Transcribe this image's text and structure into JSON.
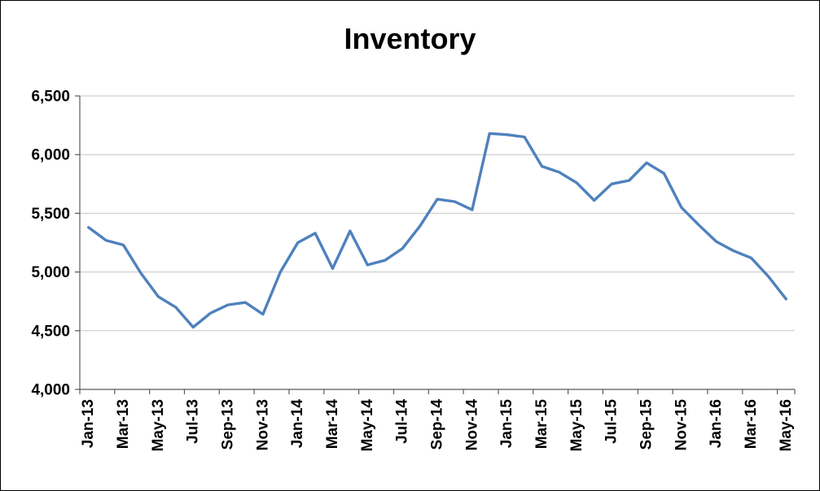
{
  "chart_data": {
    "type": "line",
    "title": "Inventory",
    "categories": [
      "Jan-13",
      "Feb-13",
      "Mar-13",
      "Apr-13",
      "May-13",
      "Jun-13",
      "Jul-13",
      "Aug-13",
      "Sep-13",
      "Oct-13",
      "Nov-13",
      "Dec-13",
      "Jan-14",
      "Feb-14",
      "Mar-14",
      "Apr-14",
      "May-14",
      "Jun-14",
      "Jul-14",
      "Aug-14",
      "Sep-14",
      "Oct-14",
      "Nov-14",
      "Dec-14",
      "Jan-15",
      "Feb-15",
      "Mar-15",
      "Apr-15",
      "May-15",
      "Jun-15",
      "Jul-15",
      "Aug-15",
      "Sep-15",
      "Oct-15",
      "Nov-15",
      "Dec-15",
      "Jan-16",
      "Feb-16",
      "Mar-16",
      "Apr-16",
      "May-16"
    ],
    "values": [
      5380,
      5270,
      5230,
      4990,
      4790,
      4700,
      4530,
      4650,
      4720,
      4740,
      4640,
      5000,
      5250,
      5330,
      5030,
      5350,
      5060,
      5100,
      5200,
      5390,
      5620,
      5600,
      5530,
      6180,
      6170,
      6150,
      5900,
      5850,
      5760,
      5610,
      5750,
      5780,
      5930,
      5840,
      5550,
      5400,
      5260,
      5180,
      5120,
      4960,
      4770
    ],
    "x_label_every": 2,
    "xlabel": "",
    "ylabel": "",
    "ylim": [
      4000,
      6500
    ],
    "ytick_step": 500,
    "ytick_labels": [
      "4,000",
      "4,500",
      "5,000",
      "5,500",
      "6,000",
      "6,500"
    ],
    "grid": true,
    "legend": "none"
  },
  "style": {
    "line_color": "#4F81BD",
    "gridline_color": "#C6C6C6",
    "axis_color": "#595959",
    "text_color": "#000000",
    "background": "#FFFFFF",
    "border_color": "#000000"
  }
}
